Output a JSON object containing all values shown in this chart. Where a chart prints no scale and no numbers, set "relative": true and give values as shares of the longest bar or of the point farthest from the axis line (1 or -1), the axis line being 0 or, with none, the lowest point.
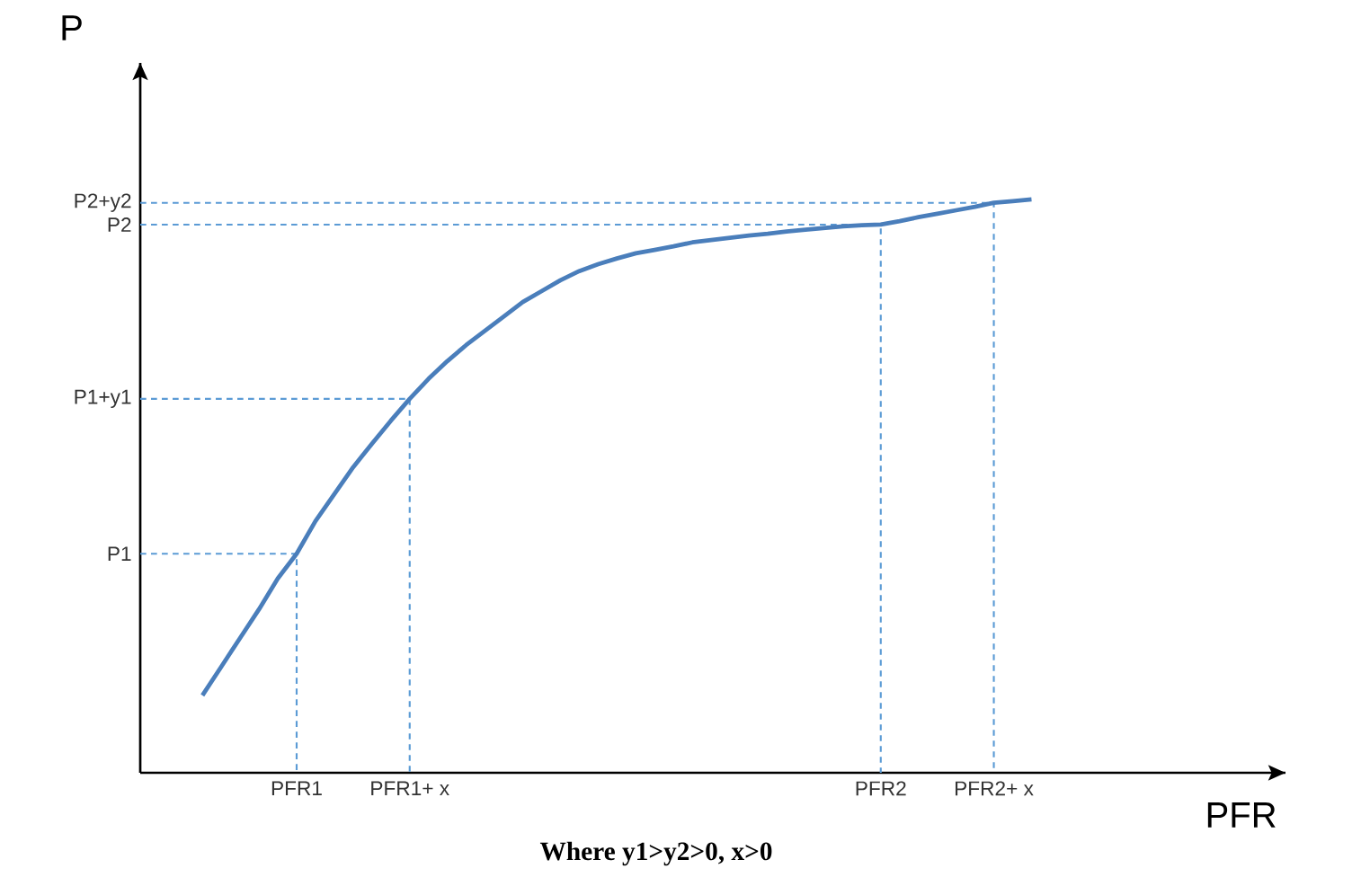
{
  "chart_data": {
    "type": "line",
    "relative": true,
    "xlabel": "PFR",
    "ylabel": "P",
    "annotations": [
      "Where y1>y2>0, x>0"
    ],
    "categories": [
      null,
      null,
      null,
      null,
      null,
      null,
      null,
      null,
      "PFR1",
      null,
      null,
      null,
      null,
      null,
      "PFR1+ x",
      null,
      null,
      null,
      null,
      null,
      null,
      null,
      null,
      null,
      null,
      null,
      null,
      null,
      null,
      null,
      null,
      null,
      null,
      null,
      null,
      null,
      null,
      null,
      null,
      "PFR2",
      null,
      null,
      null,
      null,
      null,
      "PFR2+ x",
      null,
      null
    ],
    "marker": "none",
    "series": [
      {
        "color": "#4a7ebb",
        "line_style": "solid",
        "values": [
          null,
          null,
          null,
          0.135,
          0.185,
          0.235,
          0.285,
          0.339,
          0.382,
          0.439,
          0.486,
          0.533,
          0.574,
          0.614,
          0.652,
          0.687,
          0.718,
          0.746,
          0.771,
          0.796,
          0.821,
          0.84,
          0.859,
          0.875,
          0.887,
          0.897,
          0.906,
          0.912,
          0.918,
          0.925,
          0.929,
          0.933,
          0.937,
          0.94,
          0.944,
          0.947,
          0.95,
          0.953,
          0.955,
          0.956,
          0.962,
          0.969,
          0.975,
          0.981,
          0.987,
          0.994,
          0.997,
          1
        ]
      }
    ],
    "ref_lines": [
      {
        "axis": "y",
        "value": 0.382,
        "label": "P1",
        "color": "#5b9bd5",
        "line_style": "dashed"
      },
      {
        "axis": "y",
        "value": 0.652,
        "label": "P1+y1",
        "color": "#5b9bd5",
        "line_style": "dashed"
      },
      {
        "axis": "y",
        "value": 0.956,
        "label": "P2",
        "color": "#5b9bd5",
        "line_style": "dashed"
      },
      {
        "axis": "y",
        "value": 0.994,
        "label": "P2+y2",
        "color": "#5b9bd5",
        "line_style": "dashed"
      }
    ]
  }
}
